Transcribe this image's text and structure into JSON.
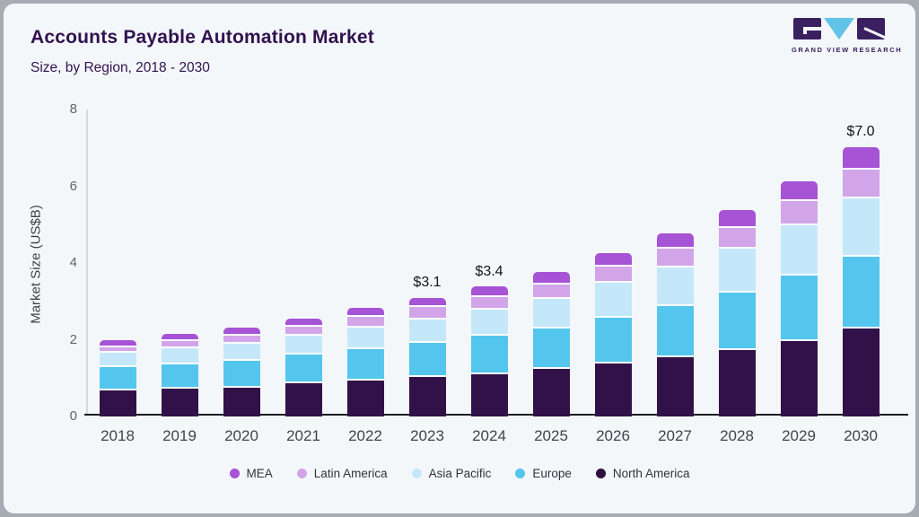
{
  "header": {
    "title": "Accounts Payable Automation Market",
    "subtitle": "Size, by Region, 2018 - 2030"
  },
  "logo": {
    "name": "Grand View Research",
    "text": "GRAND VIEW RESEARCH",
    "block_color": "#3a2060",
    "triangle_color": "#62c3e8"
  },
  "chart_data": {
    "type": "bar",
    "stacked": true,
    "title": "Accounts Payable Automation Market",
    "subtitle": "Size, by Region, 2018 - 2030",
    "xlabel": "",
    "ylabel": "Market Size (US$B)",
    "ylim": [
      0,
      8
    ],
    "yticks": [
      0,
      2,
      4,
      6,
      8
    ],
    "grid": false,
    "legend_position": "bottom",
    "categories": [
      "2018",
      "2019",
      "2020",
      "2021",
      "2022",
      "2023",
      "2024",
      "2025",
      "2026",
      "2027",
      "2028",
      "2029",
      "2030"
    ],
    "series": [
      {
        "name": "North America",
        "color": "#321148",
        "values": [
          0.68,
          0.73,
          0.76,
          0.87,
          0.94,
          1.03,
          1.11,
          1.23,
          1.39,
          1.54,
          1.74,
          1.97,
          2.3
        ]
      },
      {
        "name": "Europe",
        "color": "#54c6ee",
        "values": [
          0.61,
          0.62,
          0.7,
          0.75,
          0.81,
          0.88,
          1.0,
          1.07,
          1.19,
          1.33,
          1.5,
          1.71,
          1.87
        ]
      },
      {
        "name": "Asia Pacific",
        "color": "#c4e8f9",
        "values": [
          0.37,
          0.43,
          0.44,
          0.49,
          0.57,
          0.62,
          0.67,
          0.76,
          0.9,
          1.01,
          1.13,
          1.31,
          1.52
        ]
      },
      {
        "name": "Latin America",
        "color": "#d2a5e9",
        "values": [
          0.15,
          0.18,
          0.21,
          0.23,
          0.27,
          0.33,
          0.33,
          0.38,
          0.42,
          0.5,
          0.55,
          0.62,
          0.74
        ]
      },
      {
        "name": "MEA",
        "color": "#a653d6",
        "values": [
          0.17,
          0.19,
          0.21,
          0.22,
          0.23,
          0.24,
          0.28,
          0.33,
          0.35,
          0.39,
          0.45,
          0.52,
          0.6
        ]
      }
    ],
    "totals_labeled": [
      {
        "category": "2023",
        "label": "$3.1"
      },
      {
        "category": "2024",
        "label": "$3.4"
      },
      {
        "category": "2030",
        "label": "$7.0"
      }
    ],
    "legend": [
      {
        "label": "MEA",
        "color": "#a653d6"
      },
      {
        "label": "Latin America",
        "color": "#d2a5e9"
      },
      {
        "label": "Asia Pacific",
        "color": "#c4e8f9"
      },
      {
        "label": "Europe",
        "color": "#54c6ee"
      },
      {
        "label": "North America",
        "color": "#2d1040"
      }
    ]
  }
}
